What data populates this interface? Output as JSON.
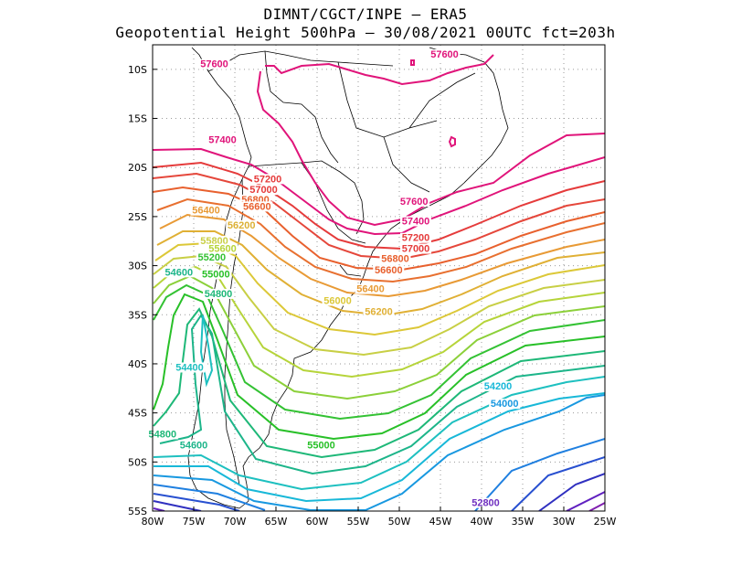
{
  "header": {
    "line1": "DIMNT/CGCT/INPE –  ERA5",
    "line2": "Geopotential Height 500hPa –  30/08/2021 00UTC fct=203h"
  },
  "map": {
    "lon_range": [
      -80,
      -25
    ],
    "lat_range": [
      -55,
      -7.5
    ],
    "x_ticks": [
      "80W",
      "75W",
      "70W",
      "65W",
      "60W",
      "55W",
      "50W",
      "45W",
      "40W",
      "35W",
      "30W",
      "25W"
    ],
    "y_ticks": [
      "10S",
      "15S",
      "20S",
      "25S",
      "30S",
      "35S",
      "40S",
      "45S",
      "50S",
      "55S"
    ],
    "grid": "dotted gray every 5 degrees"
  },
  "contour_labels": [
    {
      "text": "57600",
      "lon": -72.5,
      "lat": -9.8,
      "color": "#e0147a"
    },
    {
      "text": "57600",
      "lon": -44.5,
      "lat": -8.8,
      "color": "#e0147a"
    },
    {
      "text": "57400",
      "lon": -71.5,
      "lat": -17.5,
      "color": "#e0147a"
    },
    {
      "text": "57600",
      "lon": -48.2,
      "lat": -23.8,
      "color": "#e0147a"
    },
    {
      "text": "57400",
      "lon": -48.0,
      "lat": -25.8,
      "color": "#e0147a"
    },
    {
      "text": "57200",
      "lon": -66.0,
      "lat": -21.5,
      "color": "#e53b3b"
    },
    {
      "text": "57000",
      "lon": -66.5,
      "lat": -22.6,
      "color": "#e53b3b"
    },
    {
      "text": "56800",
      "lon": -67.5,
      "lat": -23.6,
      "color": "#e8602e"
    },
    {
      "text": "56600",
      "lon": -67.3,
      "lat": -24.3,
      "color": "#e8602e"
    },
    {
      "text": "56400",
      "lon": -73.5,
      "lat": -24.7,
      "color": "#e89a35"
    },
    {
      "text": "56200",
      "lon": -69.2,
      "lat": -26.2,
      "color": "#dcb035"
    },
    {
      "text": "55800",
      "lon": -72.5,
      "lat": -27.8,
      "color": "#c8cf45"
    },
    {
      "text": "55600",
      "lon": -71.5,
      "lat": -28.6,
      "color": "#b6d43a"
    },
    {
      "text": "55200",
      "lon": -72.8,
      "lat": -29.5,
      "color": "#34c234"
    },
    {
      "text": "54600",
      "lon": -76.8,
      "lat": -31.0,
      "color": "#1db58a"
    },
    {
      "text": "55000",
      "lon": -72.3,
      "lat": -31.2,
      "color": "#28c028"
    },
    {
      "text": "54800",
      "lon": -72.0,
      "lat": -33.2,
      "color": "#1eb878"
    },
    {
      "text": "57200",
      "lon": -48.0,
      "lat": -27.5,
      "color": "#e53b3b"
    },
    {
      "text": "57000",
      "lon": -48.0,
      "lat": -28.6,
      "color": "#e53b3b"
    },
    {
      "text": "56800",
      "lon": -50.5,
      "lat": -29.6,
      "color": "#e8602e"
    },
    {
      "text": "56600",
      "lon": -51.3,
      "lat": -30.8,
      "color": "#e8602e"
    },
    {
      "text": "56400",
      "lon": -53.5,
      "lat": -32.7,
      "color": "#e89a35"
    },
    {
      "text": "56000",
      "lon": -57.5,
      "lat": -33.9,
      "color": "#dcc838"
    },
    {
      "text": "56200",
      "lon": -52.5,
      "lat": -35.0,
      "color": "#e0b035"
    },
    {
      "text": "54400",
      "lon": -75.5,
      "lat": -40.7,
      "color": "#1ec0c0"
    },
    {
      "text": "54200",
      "lon": -38.0,
      "lat": -42.6,
      "color": "#18b8d8"
    },
    {
      "text": "54000",
      "lon": -37.2,
      "lat": -44.4,
      "color": "#1898e0"
    },
    {
      "text": "54800",
      "lon": -78.8,
      "lat": -47.5,
      "color": "#1eb878"
    },
    {
      "text": "54600",
      "lon": -75.0,
      "lat": -48.6,
      "color": "#1db58a"
    },
    {
      "text": "55000",
      "lon": -59.5,
      "lat": -48.6,
      "color": "#28c028"
    },
    {
      "text": "52800",
      "lon": -39.5,
      "lat": -54.5,
      "color": "#7030c0"
    }
  ]
}
